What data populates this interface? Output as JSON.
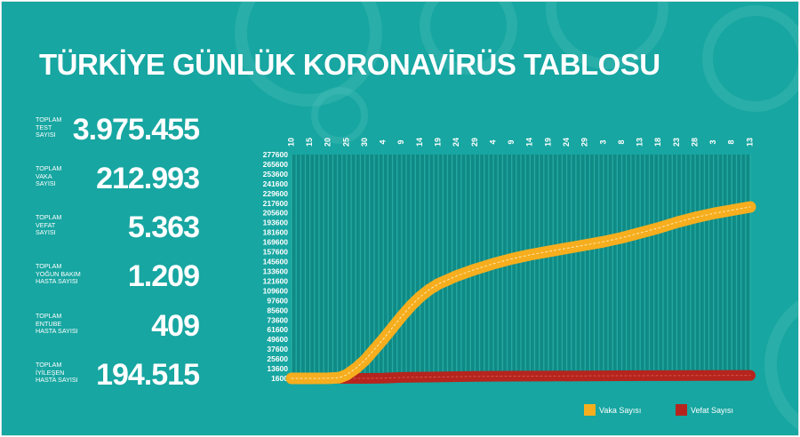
{
  "title": "TÜRKİYE GÜNLÜK KORONAVİRÜS TABLOSU",
  "stats": [
    {
      "label_lines": [
        "TOPLAM",
        "TEST",
        "SAYISI"
      ],
      "value": "3.975.455"
    },
    {
      "label_lines": [
        "TOPLAM",
        "VAKA",
        "SAYISI"
      ],
      "value": "212.993"
    },
    {
      "label_lines": [
        "TOPLAM",
        "VEFAT",
        "SAYISI"
      ],
      "value": "5.363"
    },
    {
      "label_lines": [
        "TOPLAM",
        "YOĞUN BAKIM",
        "HASTA SAYISI"
      ],
      "value": "1.209"
    },
    {
      "label_lines": [
        "TOPLAM",
        "ENTUBE",
        "HASTA SAYISI"
      ],
      "value": "409"
    },
    {
      "label_lines": [
        "TOPLAM",
        "İYİLEŞEN",
        "HASTA SAYISI"
      ],
      "value": "194.515"
    }
  ],
  "colors": {
    "background": "#17a6a1",
    "plot_area": "#0f8a85",
    "vaka": "#f6ae1e",
    "vefat": "#b5251e"
  },
  "chart_data": {
    "type": "line",
    "x_tick_labels": [
      "10",
      "15",
      "20",
      "25",
      "30",
      "4",
      "9",
      "14",
      "19",
      "24",
      "29",
      "4",
      "9",
      "14",
      "19",
      "24",
      "29",
      "3",
      "8",
      "13",
      "18",
      "23",
      "28",
      "3",
      "8",
      "13"
    ],
    "y_tick_labels": [
      "277600",
      "265600",
      "253600",
      "241600",
      "229600",
      "217600",
      "205600",
      "193600",
      "181600",
      "169600",
      "157600",
      "145600",
      "133600",
      "121600",
      "109600",
      "97600",
      "85600",
      "73600",
      "61600",
      "49600",
      "37600",
      "25600",
      "13600",
      "1600"
    ],
    "ylim": [
      1600,
      277600
    ],
    "x_range": [
      0,
      25
    ],
    "grid": "vertical",
    "legend_position": "bottom-right",
    "series": [
      {
        "name": "Vaka Sayısı",
        "color": "#f6ae1e",
        "points": [
          [
            0,
            1600
          ],
          [
            1,
            1600
          ],
          [
            2,
            1700
          ],
          [
            2.6,
            2500
          ],
          [
            3,
            6000
          ],
          [
            3.5,
            14000
          ],
          [
            4,
            24000
          ],
          [
            4.5,
            37000
          ],
          [
            5,
            50000
          ],
          [
            5.5,
            64000
          ],
          [
            6,
            78000
          ],
          [
            6.5,
            91000
          ],
          [
            7,
            102000
          ],
          [
            7.5,
            111000
          ],
          [
            8,
            118000
          ],
          [
            8.5,
            123000
          ],
          [
            9,
            128000
          ],
          [
            10,
            136000
          ],
          [
            11,
            143000
          ],
          [
            12,
            149000
          ],
          [
            13,
            154000
          ],
          [
            14,
            158000
          ],
          [
            15,
            162000
          ],
          [
            16,
            166000
          ],
          [
            17,
            170000
          ],
          [
            18,
            175000
          ],
          [
            19,
            181000
          ],
          [
            20,
            187000
          ],
          [
            21,
            194000
          ],
          [
            22,
            200000
          ],
          [
            23,
            205000
          ],
          [
            24,
            209000
          ],
          [
            25,
            213000
          ]
        ]
      },
      {
        "name": "Vefat Sayısı",
        "color": "#b5251e",
        "points": [
          [
            0,
            0
          ],
          [
            3,
            100
          ],
          [
            4,
            500
          ],
          [
            5,
            1800
          ],
          [
            6,
            2800
          ],
          [
            8,
            3400
          ],
          [
            10,
            4000
          ],
          [
            12,
            4300
          ],
          [
            14,
            4500
          ],
          [
            16,
            4700
          ],
          [
            18,
            4850
          ],
          [
            20,
            5000
          ],
          [
            22,
            5150
          ],
          [
            25,
            5363
          ]
        ]
      }
    ]
  }
}
